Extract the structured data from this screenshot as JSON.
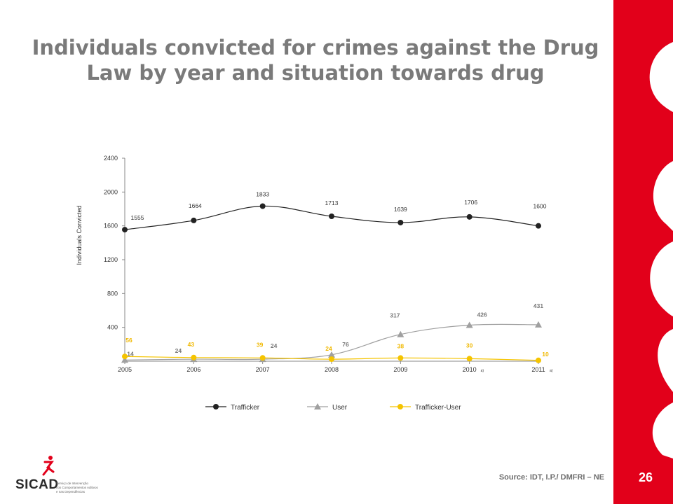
{
  "title": "Individuals convicted for crimes against the Drug Law by year and situation towards drug",
  "page_number": "26",
  "source": "Source: IDT, I.P./ DMFRI – NE",
  "logo": {
    "text": "SICAD",
    "subtitle_lines": [
      "Serviço de Intervenção",
      "nos Comportamentos Aditivos",
      "e nas Dependências"
    ]
  },
  "colors": {
    "accent_red": "#e2001a",
    "title_gray": "#7a7a7a",
    "trafficker": "#222222",
    "user": "#a0a0a0",
    "trafficker_user": "#f5c400"
  },
  "chart_data": {
    "type": "line",
    "title": "",
    "ylabel": "Individuals Convicted",
    "xlabel": "",
    "ylim": [
      0,
      2400
    ],
    "yticks": [
      400,
      800,
      1200,
      1600,
      2000,
      2400
    ],
    "categories": [
      "2005",
      "2006",
      "2007",
      "2008",
      "2009",
      "2010",
      "2011"
    ],
    "category_notes": [
      "",
      "",
      "",
      "",
      "",
      "a)",
      "a)"
    ],
    "legend_position": "bottom",
    "series": [
      {
        "name": "Trafficker",
        "marker": "circle",
        "values": [
          1555,
          1664,
          1833,
          1713,
          1639,
          1706,
          1600
        ]
      },
      {
        "name": "User",
        "marker": "triangle",
        "values": [
          14,
          24,
          24,
          76,
          317,
          426,
          431
        ]
      },
      {
        "name": "Trafficker-User",
        "marker": "circle",
        "values": [
          56,
          43,
          39,
          24,
          38,
          30,
          10
        ]
      }
    ]
  }
}
